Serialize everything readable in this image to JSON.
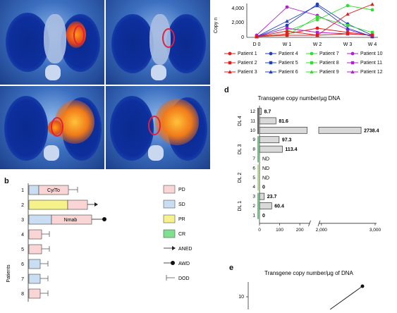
{
  "panel_labels": {
    "b": "b",
    "d": "d",
    "e": "e"
  },
  "panel_c_line": {
    "ylabel": "Copy n",
    "yticks": [
      "0",
      "2,000",
      "4,000"
    ],
    "xticks": [
      "D 0",
      "W 1",
      "W 2",
      "W 3",
      "W 4"
    ],
    "legend": [
      {
        "name": "Patient 1",
        "color": "#e41a1c",
        "marker": "circle"
      },
      {
        "name": "Patient 4",
        "color": "#1f3fbf",
        "marker": "circle"
      },
      {
        "name": "Patient 7",
        "color": "#33dd33",
        "marker": "circle"
      },
      {
        "name": "Patient 10",
        "color": "#b21fcc",
        "marker": "circle"
      },
      {
        "name": "Patient 2",
        "color": "#e41a1c",
        "marker": "square"
      },
      {
        "name": "Patient 5",
        "color": "#1f3fbf",
        "marker": "square"
      },
      {
        "name": "Patient 8",
        "color": "#33dd33",
        "marker": "square"
      },
      {
        "name": "Patient 11",
        "color": "#b21fcc",
        "marker": "square"
      },
      {
        "name": "Patient 3",
        "color": "#e41a1c",
        "marker": "triangle"
      },
      {
        "name": "Patient 6",
        "color": "#1f3fbf",
        "marker": "triangle"
      },
      {
        "name": "Patient 9",
        "color": "#33dd33",
        "marker": "triangle"
      },
      {
        "name": "Patient 12",
        "color": "#b21fcc",
        "marker": "triangle"
      }
    ]
  },
  "panel_b": {
    "ylabel": "Patients",
    "patients": [
      "1",
      "2",
      "3",
      "4",
      "5",
      "6",
      "7",
      "8"
    ],
    "bar_labels": {
      "p1": "Cy/To",
      "p3": "Nmab"
    },
    "legend": [
      {
        "name": "PD",
        "color": "#f9d5d5"
      },
      {
        "name": "SD",
        "color": "#c9def3"
      },
      {
        "name": "PR",
        "color": "#f5f28c"
      },
      {
        "name": "CR",
        "color": "#7fe08f"
      }
    ],
    "symbol_legend": [
      "ANED",
      "AWD",
      "DOD"
    ]
  },
  "chart_data": [
    {
      "type": "bar",
      "title": "Transgene copy number/µg DNA",
      "orientation": "horizontal",
      "categories": [
        "12",
        "11",
        "10",
        "9",
        "8",
        "7",
        "6",
        "5",
        "4",
        "3",
        "2",
        "1"
      ],
      "groups": [
        {
          "name": "DL 4",
          "patients": [
            "12",
            "11",
            "10"
          ],
          "color": "#222222"
        },
        {
          "name": "DL 3",
          "patients": [
            "9",
            "8",
            "7"
          ],
          "color": "#2aa84a"
        },
        {
          "name": "DL 2",
          "patients": [
            "6",
            "5",
            "4"
          ],
          "color": "#9acd5a"
        },
        {
          "name": "DL 1",
          "patients": [
            "3",
            "2",
            "1"
          ],
          "color": "#2aa84a"
        }
      ],
      "values": [
        8.7,
        81.6,
        2738.4,
        97.3,
        113.4,
        null,
        null,
        null,
        0,
        23.7,
        60.4,
        0
      ],
      "value_labels": [
        "8.7",
        "81.6",
        "2738.4",
        "97.3",
        "113.4",
        "ND",
        "ND",
        "ND",
        "0",
        "23.7",
        "60.4",
        "0"
      ],
      "xticks": [
        "0",
        "100",
        "200",
        "2,000",
        "3,000"
      ],
      "axis_break": [
        250,
        1950
      ]
    },
    {
      "type": "line",
      "title": "Transgene copy number/µg of DNA",
      "yticks": [
        "10"
      ]
    }
  ]
}
